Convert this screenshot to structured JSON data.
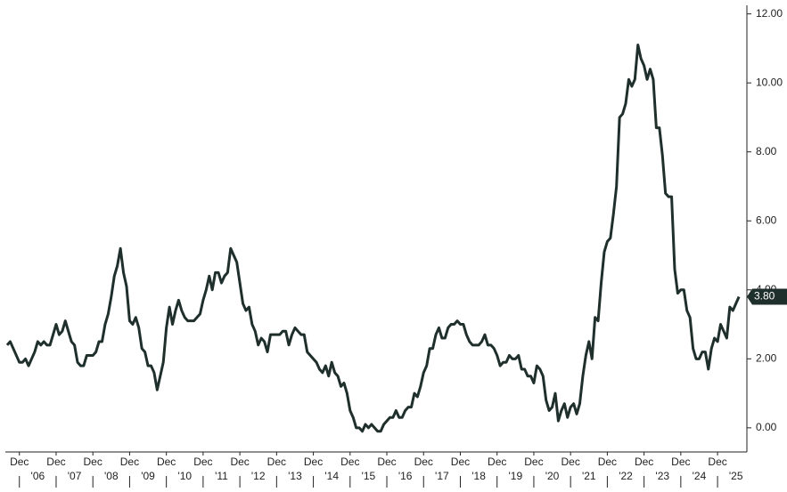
{
  "chart_data": {
    "type": "line",
    "x": [
      "2005-08",
      "2005-09",
      "2005-10",
      "2005-11",
      "2005-12",
      "2006-01",
      "2006-02",
      "2006-03",
      "2006-04",
      "2006-05",
      "2006-06",
      "2006-07",
      "2006-08",
      "2006-09",
      "2006-10",
      "2006-11",
      "2006-12",
      "2007-01",
      "2007-02",
      "2007-03",
      "2007-04",
      "2007-05",
      "2007-06",
      "2007-07",
      "2007-08",
      "2007-09",
      "2007-10",
      "2007-11",
      "2007-12",
      "2008-01",
      "2008-02",
      "2008-03",
      "2008-04",
      "2008-05",
      "2008-06",
      "2008-07",
      "2008-08",
      "2008-09",
      "2008-10",
      "2008-11",
      "2008-12",
      "2009-01",
      "2009-02",
      "2009-03",
      "2009-04",
      "2009-05",
      "2009-06",
      "2009-07",
      "2009-08",
      "2009-09",
      "2009-10",
      "2009-11",
      "2009-12",
      "2010-01",
      "2010-02",
      "2010-03",
      "2010-04",
      "2010-05",
      "2010-06",
      "2010-07",
      "2010-08",
      "2010-09",
      "2010-10",
      "2010-11",
      "2010-12",
      "2011-01",
      "2011-02",
      "2011-03",
      "2011-04",
      "2011-05",
      "2011-06",
      "2011-07",
      "2011-08",
      "2011-09",
      "2011-10",
      "2011-11",
      "2011-12",
      "2012-01",
      "2012-02",
      "2012-03",
      "2012-04",
      "2012-05",
      "2012-06",
      "2012-07",
      "2012-08",
      "2012-09",
      "2012-10",
      "2012-11",
      "2012-12",
      "2013-01",
      "2013-02",
      "2013-03",
      "2013-04",
      "2013-05",
      "2013-06",
      "2013-07",
      "2013-08",
      "2013-09",
      "2013-10",
      "2013-11",
      "2013-12",
      "2014-01",
      "2014-02",
      "2014-03",
      "2014-04",
      "2014-05",
      "2014-06",
      "2014-07",
      "2014-08",
      "2014-09",
      "2014-10",
      "2014-11",
      "2014-12",
      "2015-01",
      "2015-02",
      "2015-03",
      "2015-04",
      "2015-05",
      "2015-06",
      "2015-07",
      "2015-08",
      "2015-09",
      "2015-10",
      "2015-11",
      "2015-12",
      "2016-01",
      "2016-02",
      "2016-03",
      "2016-04",
      "2016-05",
      "2016-06",
      "2016-07",
      "2016-08",
      "2016-09",
      "2016-10",
      "2016-11",
      "2016-12",
      "2017-01",
      "2017-02",
      "2017-03",
      "2017-04",
      "2017-05",
      "2017-06",
      "2017-07",
      "2017-08",
      "2017-09",
      "2017-10",
      "2017-11",
      "2017-12",
      "2018-01",
      "2018-02",
      "2018-03",
      "2018-04",
      "2018-05",
      "2018-06",
      "2018-07",
      "2018-08",
      "2018-09",
      "2018-10",
      "2018-11",
      "2018-12",
      "2019-01",
      "2019-02",
      "2019-03",
      "2019-04",
      "2019-05",
      "2019-06",
      "2019-07",
      "2019-08",
      "2019-09",
      "2019-10",
      "2019-11",
      "2019-12",
      "2020-01",
      "2020-02",
      "2020-03",
      "2020-04",
      "2020-05",
      "2020-06",
      "2020-07",
      "2020-08",
      "2020-09",
      "2020-10",
      "2020-11",
      "2020-12",
      "2021-01",
      "2021-02",
      "2021-03",
      "2021-04",
      "2021-05",
      "2021-06",
      "2021-07",
      "2021-08",
      "2021-09",
      "2021-10",
      "2021-11",
      "2021-12",
      "2022-01",
      "2022-02",
      "2022-03",
      "2022-04",
      "2022-05",
      "2022-06",
      "2022-07",
      "2022-08",
      "2022-09",
      "2022-10",
      "2022-11",
      "2022-12",
      "2023-01",
      "2023-02",
      "2023-03",
      "2023-04",
      "2023-05",
      "2023-06",
      "2023-07",
      "2023-08",
      "2023-09",
      "2023-10",
      "2023-11",
      "2023-12",
      "2024-01",
      "2024-02",
      "2024-03",
      "2024-04",
      "2024-05",
      "2024-06",
      "2024-07",
      "2024-08",
      "2024-09",
      "2024-10",
      "2024-11",
      "2024-12",
      "2025-01",
      "2025-02",
      "2025-03",
      "2025-04",
      "2025-05",
      "2025-06",
      "2025-07"
    ],
    "series": [
      {
        "color": "#1f2f2c",
        "values": [
          2.4,
          2.5,
          2.3,
          2.1,
          1.9,
          1.9,
          2.0,
          1.8,
          2.0,
          2.2,
          2.5,
          2.4,
          2.5,
          2.4,
          2.4,
          2.7,
          3.0,
          2.7,
          2.8,
          3.1,
          2.8,
          2.5,
          2.4,
          1.9,
          1.8,
          1.8,
          2.1,
          2.1,
          2.1,
          2.2,
          2.5,
          2.5,
          3.0,
          3.3,
          3.8,
          4.4,
          4.7,
          5.2,
          4.5,
          4.1,
          3.1,
          3.0,
          3.2,
          2.9,
          2.3,
          2.2,
          1.8,
          1.8,
          1.6,
          1.1,
          1.5,
          1.9,
          2.9,
          3.5,
          3.0,
          3.4,
          3.7,
          3.4,
          3.2,
          3.1,
          3.1,
          3.1,
          3.2,
          3.3,
          3.7,
          4.0,
          4.4,
          4.0,
          4.5,
          4.5,
          4.2,
          4.4,
          4.5,
          5.2,
          5.0,
          4.8,
          4.2,
          3.6,
          3.4,
          3.5,
          3.0,
          2.8,
          2.4,
          2.6,
          2.5,
          2.2,
          2.7,
          2.7,
          2.7,
          2.7,
          2.8,
          2.8,
          2.4,
          2.7,
          2.9,
          2.8,
          2.7,
          2.7,
          2.2,
          2.1,
          2.0,
          1.9,
          1.7,
          1.6,
          1.8,
          1.5,
          1.9,
          1.6,
          1.5,
          1.2,
          1.3,
          1.0,
          0.5,
          0.3,
          0.0,
          0.0,
          -0.1,
          0.1,
          0.0,
          0.1,
          0.0,
          -0.1,
          -0.1,
          0.1,
          0.2,
          0.3,
          0.3,
          0.5,
          0.3,
          0.3,
          0.5,
          0.6,
          0.6,
          1.0,
          0.9,
          1.2,
          1.6,
          1.8,
          2.3,
          2.3,
          2.7,
          2.9,
          2.6,
          2.6,
          2.9,
          3.0,
          3.0,
          3.1,
          3.0,
          3.0,
          2.7,
          2.5,
          2.4,
          2.4,
          2.4,
          2.5,
          2.7,
          2.4,
          2.4,
          2.3,
          2.1,
          1.8,
          1.9,
          1.9,
          2.1,
          2.0,
          2.0,
          2.1,
          1.7,
          1.7,
          1.5,
          1.5,
          1.3,
          1.8,
          1.7,
          1.5,
          0.8,
          0.5,
          0.6,
          1.0,
          0.2,
          0.5,
          0.7,
          0.3,
          0.6,
          0.7,
          0.4,
          0.7,
          1.5,
          2.1,
          2.5,
          2.0,
          3.2,
          3.1,
          4.2,
          5.1,
          5.4,
          5.5,
          6.2,
          7.0,
          9.0,
          9.1,
          9.4,
          10.1,
          9.9,
          10.1,
          11.1,
          10.7,
          10.5,
          10.1,
          10.4,
          10.1,
          8.7,
          8.7,
          7.9,
          6.8,
          6.7,
          6.7,
          4.6,
          3.9,
          4.0,
          4.0,
          3.4,
          3.2,
          2.3,
          2.0,
          2.0,
          2.2,
          2.2,
          1.7,
          2.3,
          2.6,
          2.5,
          3.0,
          2.8,
          2.6,
          3.5,
          3.4,
          3.6,
          3.8
        ]
      }
    ],
    "end_label": "3.80",
    "ylim": [
      -0.7,
      12.3
    ],
    "yticks": [
      {
        "value": 0,
        "label": "0.00"
      },
      {
        "value": 2,
        "label": "2.00"
      },
      {
        "value": 4,
        "label": "4.00"
      },
      {
        "value": 6,
        "label": "6.00"
      },
      {
        "value": 8,
        "label": "8.00"
      },
      {
        "value": 10,
        "label": "10.00"
      },
      {
        "value": 12,
        "label": "12.00"
      }
    ],
    "xlim": [
      "2005-08",
      "2025-09"
    ],
    "xticks": [
      {
        "value": "2005-12",
        "label": "Dec"
      },
      {
        "value": "2006-12",
        "label": "Dec"
      },
      {
        "value": "2007-12",
        "label": "Dec"
      },
      {
        "value": "2008-12",
        "label": "Dec"
      },
      {
        "value": "2009-12",
        "label": "Dec"
      },
      {
        "value": "2010-12",
        "label": "Dec"
      },
      {
        "value": "2011-12",
        "label": "Dec"
      },
      {
        "value": "2012-12",
        "label": "Dec"
      },
      {
        "value": "2013-12",
        "label": "Dec"
      },
      {
        "value": "2014-12",
        "label": "Dec"
      },
      {
        "value": "2015-12",
        "label": "Dec"
      },
      {
        "value": "2016-12",
        "label": "Dec"
      },
      {
        "value": "2017-12",
        "label": "Dec"
      },
      {
        "value": "2018-12",
        "label": "Dec"
      },
      {
        "value": "2019-12",
        "label": "Dec"
      },
      {
        "value": "2020-12",
        "label": "Dec"
      },
      {
        "value": "2021-12",
        "label": "Dec"
      },
      {
        "value": "2022-12",
        "label": "Dec"
      },
      {
        "value": "2023-12",
        "label": "Dec"
      },
      {
        "value": "2024-12",
        "label": "Dec"
      }
    ],
    "year_labels": [
      {
        "value": "2006-06",
        "label": "'06"
      },
      {
        "value": "2007-06",
        "label": "'07"
      },
      {
        "value": "2008-06",
        "label": "'08"
      },
      {
        "value": "2009-06",
        "label": "'09"
      },
      {
        "value": "2010-06",
        "label": "'10"
      },
      {
        "value": "2011-06",
        "label": "'11"
      },
      {
        "value": "2012-06",
        "label": "'12"
      },
      {
        "value": "2013-06",
        "label": "'13"
      },
      {
        "value": "2014-06",
        "label": "'14"
      },
      {
        "value": "2015-06",
        "label": "'15"
      },
      {
        "value": "2016-06",
        "label": "'16"
      },
      {
        "value": "2017-06",
        "label": "'17"
      },
      {
        "value": "2018-06",
        "label": "'18"
      },
      {
        "value": "2019-06",
        "label": "'19"
      },
      {
        "value": "2020-06",
        "label": "'20"
      },
      {
        "value": "2021-06",
        "label": "'21"
      },
      {
        "value": "2022-06",
        "label": "'22"
      },
      {
        "value": "2023-06",
        "label": "'23"
      },
      {
        "value": "2024-06",
        "label": "'24"
      },
      {
        "value": "2025-06",
        "label": "'25"
      }
    ]
  }
}
